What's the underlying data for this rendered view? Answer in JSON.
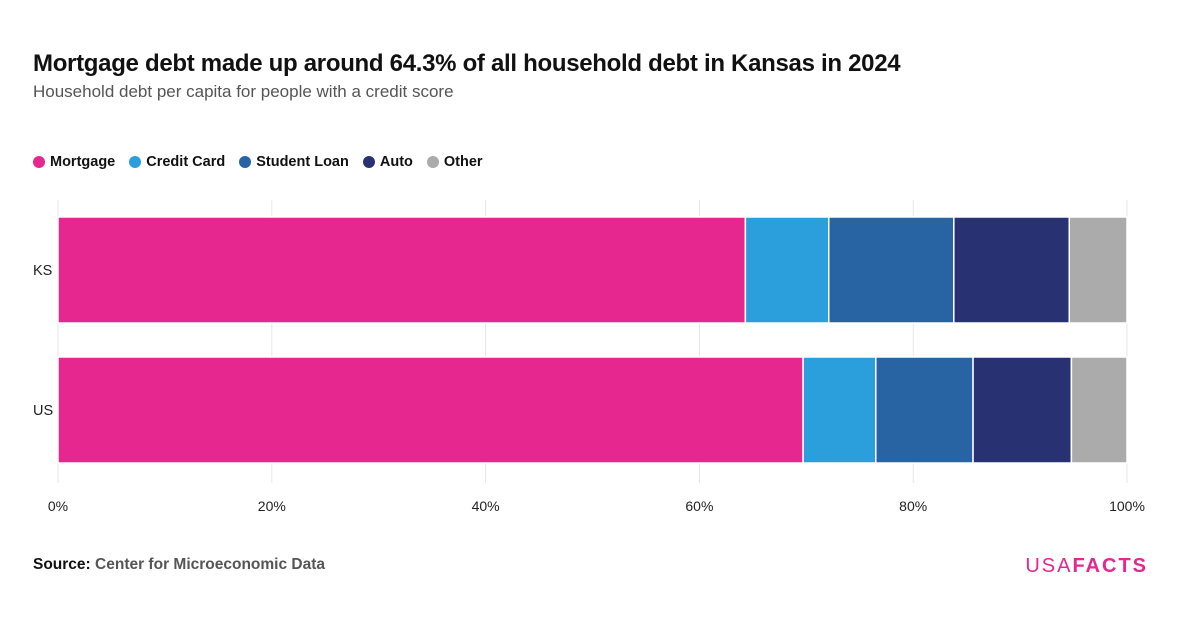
{
  "title": "Mortgage debt made up around 64.3% of all household debt in Kansas in 2024",
  "subtitle": "Household debt per capita for people with a credit score",
  "source": {
    "label": "Source:",
    "text": "Center for Microeconomic Data"
  },
  "logo": {
    "usa": "USA",
    "facts": "FACTS"
  },
  "chart_data": {
    "type": "bar",
    "orientation": "horizontal",
    "stacked": true,
    "normalized": true,
    "categories": [
      "KS",
      "US"
    ],
    "series": [
      {
        "name": "Mortgage",
        "color": "#e6278f",
        "values": [
          64.3,
          69.7
        ]
      },
      {
        "name": "Credit Card",
        "color": "#2b9fdb",
        "values": [
          7.8,
          6.8
        ]
      },
      {
        "name": "Student Loan",
        "color": "#2864a4",
        "values": [
          11.7,
          9.1
        ]
      },
      {
        "name": "Auto",
        "color": "#283272",
        "values": [
          10.8,
          9.2
        ]
      },
      {
        "name": "Other",
        "color": "#aaabaa",
        "values": [
          5.4,
          5.2
        ]
      }
    ],
    "xlim": [
      0,
      100
    ],
    "xticks": [
      "0%",
      "20%",
      "40%",
      "60%",
      "80%",
      "100%"
    ],
    "xtick_values": [
      0,
      20,
      40,
      60,
      80,
      100
    ],
    "grid": true,
    "legend_position": "top-left"
  }
}
